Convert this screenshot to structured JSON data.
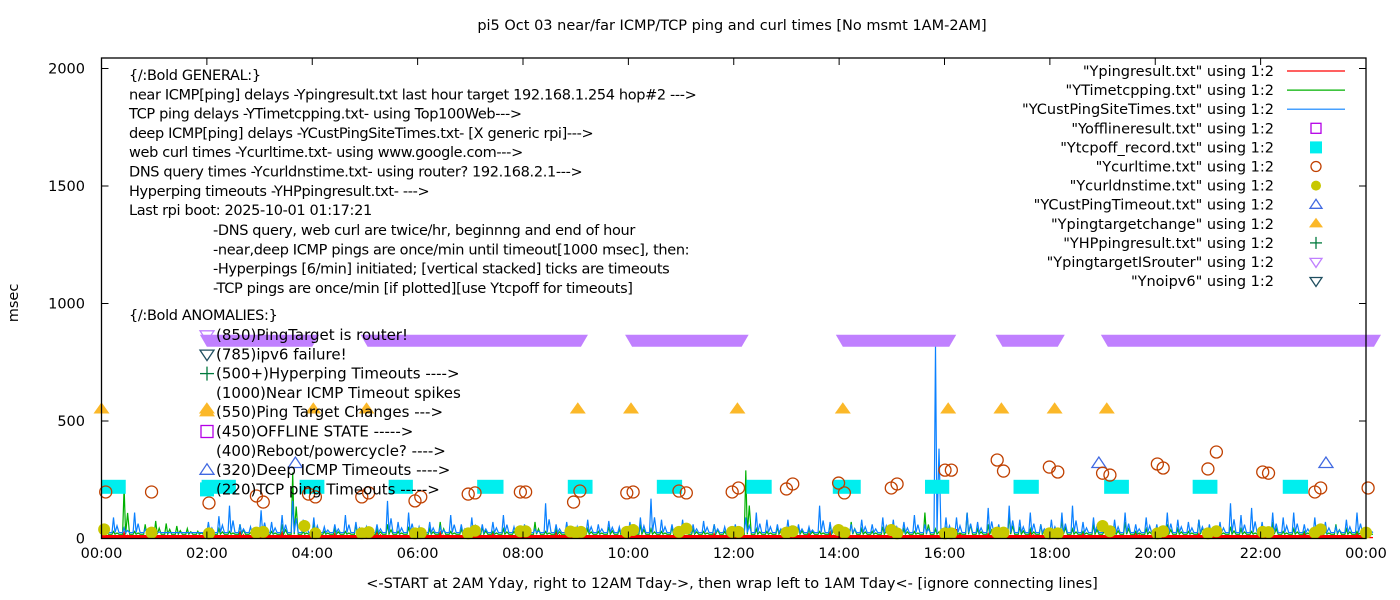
{
  "chart_data": {
    "type": "line",
    "title": "pi5 Oct 03  near/far ICMP/TCP ping and curl times [No msmt 1AM-2AM]",
    "xlabel": "<-START at 2AM Yday, right to 12AM Tday->, then wrap left to 1AM Tday<- [ignore connecting lines]",
    "ylabel": "msec",
    "xlim": [
      0,
      24
    ],
    "ylim": [
      0,
      2050
    ],
    "x_tick_values": [
      0,
      2,
      4,
      6,
      8,
      10,
      12,
      14,
      16,
      18,
      20,
      22,
      24
    ],
    "x_tick_labels": [
      "00:00",
      "02:00",
      "04:00",
      "06:00",
      "08:00",
      "10:00",
      "12:00",
      "14:00",
      "16:00",
      "18:00",
      "20:00",
      "22:00",
      "00:00"
    ],
    "y_tick_values": [
      0,
      500,
      1000,
      1500,
      2000
    ],
    "y_tick_labels": [
      "0",
      "500",
      "1000",
      "1500",
      "2000"
    ],
    "grid": false,
    "legend_placement": "top-right",
    "series_step_hours": 0.2,
    "series": [
      {
        "name": "\"Ypingresult.txt\" using 1:2",
        "color": "#ff0000",
        "kind": "line",
        "values": [
          5,
          5,
          25,
          5,
          5,
          5,
          5,
          5,
          5,
          5,
          5,
          10,
          5,
          30,
          5,
          5,
          5,
          25,
          5,
          5,
          5,
          5,
          20,
          5,
          5,
          5,
          30,
          5,
          5,
          5,
          5,
          5,
          25,
          5,
          5,
          5,
          5,
          20,
          5,
          5,
          5,
          5,
          5,
          30,
          5,
          5,
          5,
          5,
          5,
          5,
          20,
          5,
          5,
          5,
          5,
          5,
          5,
          5,
          20,
          5,
          5,
          5,
          5,
          5,
          5,
          5,
          5,
          20,
          5,
          25,
          5,
          5,
          5,
          5,
          5,
          30,
          5,
          5,
          5,
          5,
          5,
          40,
          5,
          5,
          20,
          5,
          5,
          5,
          30,
          5,
          5,
          5,
          5,
          20,
          5,
          5,
          5,
          5,
          30,
          5,
          5,
          5,
          5,
          5,
          20,
          5,
          5,
          5,
          5,
          5,
          20,
          5,
          5,
          5,
          25,
          5,
          5,
          5,
          5,
          20,
          5
        ]
      },
      {
        "name": "\"YTimetcpping.txt\" using 1:2",
        "color": "#00b000",
        "kind": "line",
        "values": [
          50,
          30,
          220,
          30,
          60,
          75,
          64,
          53,
          42,
          31,
          20,
          40,
          30,
          60,
          25,
          40,
          30,
          60,
          280,
          30,
          70,
          30,
          40,
          30,
          60,
          25,
          40,
          60,
          30,
          50,
          30,
          40,
          70,
          30,
          40,
          25,
          50,
          30,
          40,
          30,
          50,
          70,
          30,
          40,
          60,
          30,
          40,
          30,
          50,
          40,
          30,
          60,
          40,
          30,
          50,
          30,
          40,
          30,
          60,
          30,
          40,
          290,
          40,
          30,
          50,
          30,
          50,
          40,
          30,
          60,
          30,
          70,
          40,
          30,
          50,
          30,
          40,
          30,
          110,
          40,
          50,
          30,
          110,
          40,
          60,
          30,
          100,
          50,
          40,
          60,
          30,
          80,
          40,
          30,
          60,
          30,
          50,
          70,
          30,
          40,
          30,
          60,
          40,
          30,
          80,
          40,
          30,
          50,
          40,
          30,
          60,
          70,
          30,
          40,
          30,
          50,
          30,
          60,
          40,
          30,
          20
        ]
      },
      {
        "name": "\"YCustPingSiteTimes.txt\" using 1:2",
        "color": "#0a80ff",
        "kind": "line",
        "values": [
          60,
          90,
          45,
          110,
          40,
          30,
          25,
          25,
          25,
          25,
          70,
          95,
          140,
          60,
          50,
          120,
          70,
          100,
          160,
          80,
          90,
          50,
          60,
          100,
          70,
          50,
          60,
          160,
          70,
          110,
          50,
          70,
          50,
          100,
          60,
          90,
          60,
          70,
          100,
          50,
          60,
          40,
          150,
          60,
          70,
          50,
          80,
          60,
          75,
          50,
          70,
          90,
          170,
          80,
          60,
          80,
          60,
          75,
          60,
          50,
          60,
          90,
          110,
          80,
          60,
          80,
          60,
          50,
          140,
          70,
          50,
          60,
          80,
          60,
          90,
          80,
          70,
          100,
          60,
          820,
          90,
          90,
          110,
          70,
          130,
          60,
          140,
          80,
          110,
          60,
          80,
          110,
          140,
          70,
          90,
          60,
          80,
          110,
          60,
          90,
          60,
          110,
          80,
          70,
          80,
          60,
          70,
          150,
          100,
          130,
          70,
          110,
          90,
          110,
          60,
          90,
          70,
          50,
          80,
          110,
          40
        ]
      }
    ],
    "markers": {
      "offline": {
        "name": "\"Yofflineresult.txt\" using 1:2",
        "color": "#b400e6",
        "points": []
      },
      "tcpoff": {
        "name": "\"Ytcpoff_record.txt\" using 1:2",
        "color": "#00eeee",
        "value": 220,
        "intervals": [
          [
            0,
            0.46
          ],
          [
            1.9,
            2.55
          ],
          [
            3.76,
            4.23
          ],
          [
            5.45,
            5.91
          ],
          [
            7.13,
            7.63
          ],
          [
            8.85,
            9.32
          ],
          [
            10.54,
            11.02
          ],
          [
            12.24,
            12.72
          ],
          [
            13.88,
            14.41
          ],
          [
            15.63,
            16.09
          ],
          [
            17.31,
            17.79
          ],
          [
            19.03,
            19.5
          ],
          [
            20.71,
            21.18
          ],
          [
            22.42,
            22.9
          ]
        ]
      },
      "curltime": {
        "name": "\"Ycurltime.txt\" using 1:2",
        "color": "#c04000",
        "points": [
          [
            0.08,
            198
          ],
          [
            0.95,
            198
          ],
          [
            2.04,
            151
          ],
          [
            2.94,
            181
          ],
          [
            3.07,
            155
          ],
          [
            3.93,
            189
          ],
          [
            4.06,
            177
          ],
          [
            4.94,
            177
          ],
          [
            5.07,
            194
          ],
          [
            5.95,
            160
          ],
          [
            6.06,
            177
          ],
          [
            6.96,
            189
          ],
          [
            7.09,
            194
          ],
          [
            7.95,
            198
          ],
          [
            8.05,
            198
          ],
          [
            8.96,
            155
          ],
          [
            9.08,
            202
          ],
          [
            9.97,
            194
          ],
          [
            10.09,
            198
          ],
          [
            10.96,
            202
          ],
          [
            11.1,
            194
          ],
          [
            11.97,
            198
          ],
          [
            12.09,
            215
          ],
          [
            13.0,
            211
          ],
          [
            13.12,
            232
          ],
          [
            13.99,
            236
          ],
          [
            14.1,
            194
          ],
          [
            14.99,
            215
          ],
          [
            15.1,
            232
          ],
          [
            16.01,
            291
          ],
          [
            16.13,
            291
          ],
          [
            17.0,
            334
          ],
          [
            17.12,
            287
          ],
          [
            17.99,
            304
          ],
          [
            18.15,
            283
          ],
          [
            19.0,
            278
          ],
          [
            19.14,
            270
          ],
          [
            20.04,
            317
          ],
          [
            20.15,
            300
          ],
          [
            21.0,
            296
          ],
          [
            21.16,
            368
          ],
          [
            22.04,
            283
          ],
          [
            22.15,
            278
          ],
          [
            23.03,
            198
          ],
          [
            23.14,
            215
          ],
          [
            24.04,
            215
          ]
        ]
      },
      "curldns": {
        "name": "\"Ycurldnstime.txt\" using 1:2",
        "color": "#c8c800",
        "points": [
          [
            0.05,
            39
          ],
          [
            0.95,
            25
          ],
          [
            2.04,
            22
          ],
          [
            2.94,
            25
          ],
          [
            3.07,
            28
          ],
          [
            3.85,
            53
          ],
          [
            4.06,
            22
          ],
          [
            4.94,
            22
          ],
          [
            5.07,
            27
          ],
          [
            5.95,
            22
          ],
          [
            6.06,
            23
          ],
          [
            6.96,
            22
          ],
          [
            7.09,
            33
          ],
          [
            7.95,
            31
          ],
          [
            8.05,
            31
          ],
          [
            8.9,
            30
          ],
          [
            9.0,
            25
          ],
          [
            9.1,
            28
          ],
          [
            9.97,
            28
          ],
          [
            10.09,
            36
          ],
          [
            10.96,
            28
          ],
          [
            11.1,
            42
          ],
          [
            11.97,
            28
          ],
          [
            12.09,
            28
          ],
          [
            13.0,
            25
          ],
          [
            13.12,
            31
          ],
          [
            13.99,
            36
          ],
          [
            14.1,
            25
          ],
          [
            14.99,
            36
          ],
          [
            15.1,
            22
          ],
          [
            16.01,
            22
          ],
          [
            16.13,
            22
          ],
          [
            17.0,
            25
          ],
          [
            17.12,
            25
          ],
          [
            17.99,
            22
          ],
          [
            18.15,
            22
          ],
          [
            19.0,
            53
          ],
          [
            19.14,
            31
          ],
          [
            20.04,
            22
          ],
          [
            20.15,
            31
          ],
          [
            21.0,
            22
          ],
          [
            21.16,
            31
          ],
          [
            22.04,
            28
          ],
          [
            22.15,
            27
          ],
          [
            23.03,
            25
          ],
          [
            23.14,
            39
          ],
          [
            24.0,
            25
          ]
        ]
      },
      "custpingtimeout": {
        "name": "\"YCustPingTimeout.txt\" using 1:2",
        "color": "#4169e1",
        "points": [
          [
            3.68,
            320
          ],
          [
            18.93,
            320
          ],
          [
            23.24,
            320
          ]
        ]
      },
      "pingtargetchange": {
        "name": "\"Ypingtargetchange\" using 1:2",
        "color": "#fbb829",
        "points": [
          [
            0,
            550
          ],
          [
            2.0,
            550
          ],
          [
            4.02,
            550
          ],
          [
            5.03,
            550
          ],
          [
            9.04,
            550
          ],
          [
            10.05,
            550
          ],
          [
            12.07,
            550
          ],
          [
            14.07,
            550
          ],
          [
            16.07,
            550
          ],
          [
            17.08,
            550
          ],
          [
            18.09,
            550
          ],
          [
            19.08,
            550
          ]
        ]
      },
      "hpping": {
        "name": "\"YHPpingresult.txt\" using 1:2",
        "color": "#007a3d",
        "points": []
      },
      "targetisrouter": {
        "name": "\"YpingtargetISrouter\" using 1:2",
        "color": "#c080ff",
        "value": 850,
        "intervals": [
          [
            2.0,
            4.0
          ],
          [
            5.05,
            9.1
          ],
          [
            10.07,
            12.15
          ],
          [
            14.07,
            16.09
          ],
          [
            17.1,
            18.15
          ],
          [
            19.1,
            24.2
          ]
        ]
      },
      "noipv6": {
        "name": "\"Ynoipv6\" using 1:2",
        "color": "#1f4e5f",
        "points": []
      }
    },
    "legend": [
      {
        "label": "\"Ypingresult.txt\" using 1:2",
        "style": "line",
        "color": "#ff0000"
      },
      {
        "label": "\"YTimetcpping.txt\" using 1:2",
        "style": "line",
        "color": "#00b000"
      },
      {
        "label": "\"YCustPingSiteTimes.txt\" using 1:2",
        "style": "line",
        "color": "#0a80ff"
      },
      {
        "label": "\"Yofflineresult.txt\" using 1:2",
        "style": "open-square",
        "color": "#b400e6"
      },
      {
        "label": "\"Ytcpoff_record.txt\" using 1:2",
        "style": "filled-square",
        "color": "#00eeee"
      },
      {
        "label": "\"Ycurltime.txt\" using 1:2",
        "style": "open-circle",
        "color": "#c04000"
      },
      {
        "label": "\"Ycurldnstime.txt\" using 1:2",
        "style": "filled-circle",
        "color": "#c8c800"
      },
      {
        "label": "\"YCustPingTimeout.txt\" using 1:2",
        "style": "open-triangle",
        "color": "#4169e1"
      },
      {
        "label": "\"Ypingtargetchange\" using 1:2",
        "style": "filled-triangle",
        "color": "#fbb829"
      },
      {
        "label": "\"YHPpingresult.txt\" using 1:2",
        "style": "plus",
        "color": "#007a3d"
      },
      {
        "label": "\"YpingtargetISrouter\" using 1:2",
        "style": "open-down-triangle",
        "color": "#c080ff"
      },
      {
        "label": "\"Ynoipv6\" using 1:2",
        "style": "open-down-triangle",
        "color": "#1f4e5f"
      }
    ],
    "annotations": {
      "general": [
        "{/:Bold GENERAL:}",
        "near ICMP[ping] delays -Ypingresult.txt last hour target 192.168.1.254 hop#2 --->",
        "TCP ping delays -YTimetcpping.txt- using Top100Web--->",
        "deep ICMP[ping] delays -YCustPingSiteTimes.txt- [X generic rpi]--->",
        "web curl times -Ycurltime.txt- using www.google.com--->",
        "DNS query times -Ycurldnstime.txt- using router? 192.168.2.1--->",
        "Hyperping timeouts -YHPpingresult.txt- --->",
        "Last rpi boot: 2025-10-01 01:17:21"
      ],
      "notes": [
        "-DNS query, web curl are twice/hr, beginnng and end of hour",
        "-near,deep ICMP pings are once/min until timeout[1000 msec], then:",
        " -Hyperpings [6/min] initiated; [vertical stacked] ticks are timeouts",
        "-TCP pings are once/min [if plotted][use Ytcpoff for timeouts]"
      ],
      "anomalies_header": "{/:Bold ANOMALIES:}",
      "anomalies": [
        {
          "text": "(850)PingTarget is router!",
          "style": "open-down-triangle",
          "color": "#c080ff"
        },
        {
          "text": "(785)ipv6 failure!",
          "style": "open-down-triangle",
          "color": "#1f4e5f"
        },
        {
          "text": "(500+)Hyperping Timeouts ---->",
          "style": "plus",
          "color": "#007a3d"
        },
        {
          "text": "(1000)Near ICMP Timeout spikes",
          "style": "none",
          "color": ""
        },
        {
          "text": "(550)Ping Target Changes --->",
          "style": "filled-triangle",
          "color": "#fbb829"
        },
        {
          "text": "(450)OFFLINE STATE ----->",
          "style": "open-square",
          "color": "#b400e6"
        },
        {
          "text": "(400)Reboot/powercycle? ---->",
          "style": "none",
          "color": ""
        },
        {
          "text": "(320)Deep ICMP Timeouts ---->",
          "style": "open-triangle",
          "color": "#4169e1"
        },
        {
          "text": "(220)TCP ping Timeouts ----->",
          "style": "filled-square",
          "color": "#00eeee"
        }
      ]
    }
  }
}
